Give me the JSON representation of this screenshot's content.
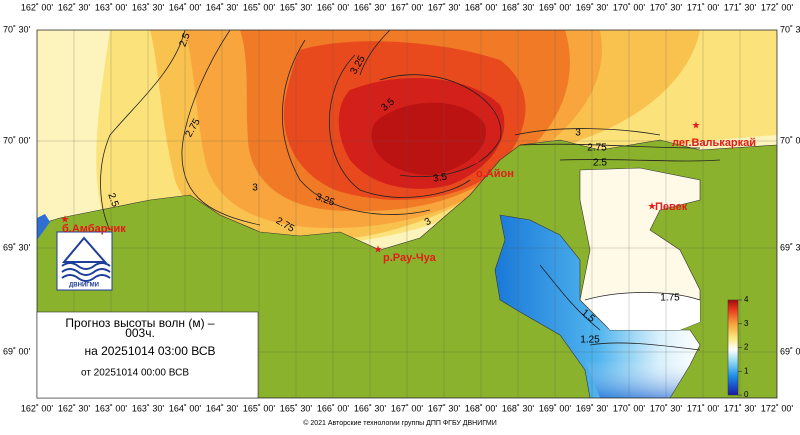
{
  "lon_labels": [
    "162˚ 00'",
    "162˚ 30'",
    "163˚ 00'",
    "163˚ 30'",
    "164˚ 00'",
    "164˚ 30'",
    "165˚ 00'",
    "165˚ 30'",
    "166˚ 00'",
    "166˚ 30'",
    "167˚ 00'",
    "167˚ 30'",
    "168˚ 00'",
    "168˚ 30'",
    "169˚ 00'",
    "169˚ 30'",
    "170˚ 00'",
    "170˚ 30'",
    "171˚ 00'",
    "171˚ 30'",
    "172˚ 00'"
  ],
  "lat_labels_left": [
    "70˚ 30'",
    "70˚ 00'",
    "69˚ 30'",
    "69˚ 00'"
  ],
  "lat_labels_right": [
    "70˚ 30",
    "70˚ 0",
    "69˚ 3",
    "69˚ 0"
  ],
  "contour_labels": [
    "2.5",
    "2.75",
    "2.5",
    "3",
    "3.25",
    "3.5",
    "3.25",
    "3.5",
    "2.75",
    "3",
    "3",
    "2.75",
    "2.5",
    "1.75",
    "1.5",
    "1.25"
  ],
  "places": [
    "б.Амбарчик",
    "р.Рау-Чуа",
    "о.Айон",
    "лег.Валькаркай",
    "Певек"
  ],
  "info": {
    "title": "Прогноз высоты волн (м) –",
    "lead": "003ч.",
    "valid": "на 20251014 03:00 ВСВ",
    "issued": "от 20251014 00:00 ВСВ"
  },
  "logo": "ДВНИГМИ",
  "colorbar": {
    "ticks": [
      0,
      1,
      2,
      3,
      4
    ],
    "lim": [
      0,
      4
    ]
  },
  "footer": "© 2021 Авторские технологии группы ДПП ФГБУ ДВНИГМИ"
}
